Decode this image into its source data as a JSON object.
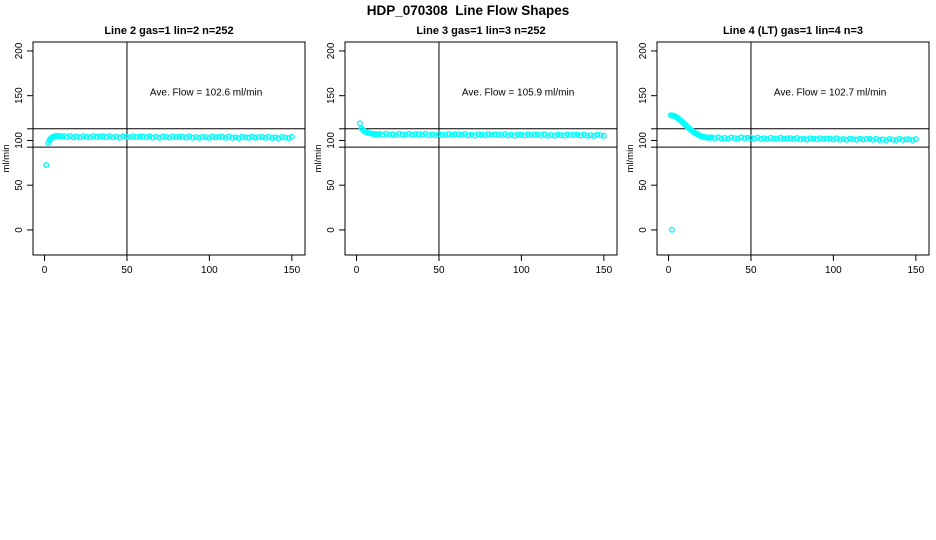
{
  "page": {
    "title": "HDP_070308  Line Flow Shapes"
  },
  "colors": {
    "points": "#00ffff",
    "axis": "#000000",
    "text": "#000000",
    "background": "#ffffff"
  },
  "axes": {
    "x_ticks": [
      0,
      50,
      100,
      150
    ],
    "y_ticks": [
      0,
      50,
      100,
      150,
      200
    ],
    "ylabel": "ml/min",
    "xlim": [
      -7,
      158
    ],
    "ylim": [
      -28,
      210
    ],
    "grid": false
  },
  "ref": {
    "h_lines": [
      113,
      92.5
    ],
    "v_line": 50
  },
  "jitter_pattern": [
    0.5,
    -0.4,
    0.8,
    -0.6,
    0.1,
    -0.8,
    0.6,
    0.0,
    -0.5,
    0.8,
    -0.2,
    0.4
  ],
  "chart_data": [
    {
      "type": "scatter",
      "title": "Line 2 gas=1 lin=2 n=252",
      "gas": 1,
      "lin": 2,
      "n": 252,
      "ave_flow_ml_min": 102.6,
      "annotation": "Ave. Flow =  102.6  ml/min",
      "annotation_xy": [
        98,
        150
      ],
      "transient_points": [
        [
          1,
          72.5
        ],
        [
          2.2,
          97
        ],
        [
          3,
          100.3
        ],
        [
          3.8,
          102.2
        ],
        [
          4.6,
          103.4
        ],
        [
          5.4,
          104.2
        ],
        [
          6.2,
          104.7
        ],
        [
          7,
          105
        ],
        [
          8,
          105.1
        ],
        [
          9,
          104.8
        ],
        [
          10,
          104.5
        ]
      ],
      "steady": {
        "x_start": 11.5,
        "x_end": 150,
        "n": 70,
        "y_start": 104.3,
        "y_end": 103.2
      },
      "outlier_points": []
    },
    {
      "type": "scatter",
      "title": "Line 3 gas=1 lin=3 n=252",
      "gas": 1,
      "lin": 3,
      "n": 252,
      "ave_flow_ml_min": 105.9,
      "annotation": "Ave. Flow =  105.9  ml/min",
      "annotation_xy": [
        98,
        150
      ],
      "transient_points": [
        [
          2,
          119
        ],
        [
          3,
          113.6
        ],
        [
          3.8,
          111.8
        ],
        [
          4.6,
          110.6
        ],
        [
          5.4,
          109.7
        ],
        [
          6.2,
          109
        ],
        [
          7,
          108.5
        ],
        [
          8,
          108
        ],
        [
          9,
          107.6
        ],
        [
          10,
          107.3
        ],
        [
          11,
          107.1
        ],
        [
          12,
          106.9
        ],
        [
          13,
          106.8
        ]
      ],
      "steady": {
        "x_start": 13.8,
        "x_end": 150,
        "n": 69,
        "y_start": 106.8,
        "y_end": 105.8
      },
      "outlier_points": []
    },
    {
      "type": "scatter",
      "title": "Line 4 (LT) gas=1 lin=4 n=3",
      "gas": 1,
      "lin": 4,
      "n": 3,
      "ave_flow_ml_min": 102.7,
      "annotation": "Ave. Flow =  102.7  ml/min",
      "annotation_xy": [
        98,
        150
      ],
      "transient_points": [
        [
          1.5,
          128.2
        ],
        [
          2.2,
          128
        ],
        [
          2.9,
          127.7
        ],
        [
          3.6,
          127.2
        ],
        [
          4.3,
          126.6
        ],
        [
          5,
          125.8
        ],
        [
          5.7,
          124.9
        ],
        [
          6.4,
          123.9
        ],
        [
          7.1,
          122.8
        ],
        [
          7.8,
          121.6
        ],
        [
          8.5,
          120.4
        ],
        [
          9.2,
          119.1
        ],
        [
          9.9,
          117.9
        ],
        [
          10.6,
          116.6
        ],
        [
          11.3,
          115.4
        ],
        [
          12,
          114.2
        ],
        [
          12.7,
          113.1
        ],
        [
          13.4,
          112.0
        ],
        [
          14.1,
          111.0
        ],
        [
          14.8,
          110.0
        ],
        [
          15.5,
          109.1
        ],
        [
          16.2,
          108.2
        ],
        [
          16.9,
          107.4
        ],
        [
          17.6,
          106.7
        ],
        [
          18.3,
          106.0
        ],
        [
          19,
          105.4
        ],
        [
          19.7,
          104.9
        ],
        [
          20.4,
          104.4
        ],
        [
          21.1,
          104.0
        ],
        [
          21.8,
          103.7
        ],
        [
          22.5,
          103.5
        ],
        [
          23.2,
          103.3
        ],
        [
          23.9,
          103.2
        ],
        [
          24.6,
          103.1
        ],
        [
          25.3,
          103.0
        ]
      ],
      "steady": {
        "x_start": 26,
        "x_end": 150,
        "n": 63,
        "y_start": 102.9,
        "y_end": 100.7
      },
      "outlier_points": [
        [
          2,
          0.3
        ]
      ]
    }
  ]
}
